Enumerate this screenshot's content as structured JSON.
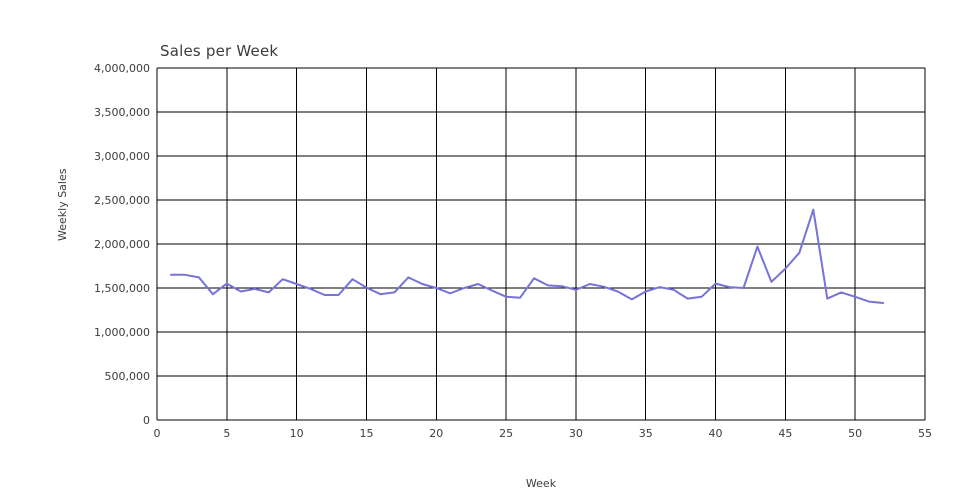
{
  "page": {
    "background_color": "#ffffff",
    "text_color": "#3c3c3c"
  },
  "chart_data": {
    "type": "line",
    "title": "Sales per Week",
    "xlabel": "Week",
    "ylabel": "Weekly Sales",
    "xlim": [
      0,
      55
    ],
    "ylim": [
      0,
      4000000
    ],
    "grid": true,
    "grid_color": "#000000",
    "legend_position": "none",
    "x_ticks": [
      0,
      5,
      10,
      15,
      20,
      25,
      30,
      35,
      40,
      45,
      50,
      55
    ],
    "x_tick_labels": [
      "0",
      "5",
      "10",
      "15",
      "20",
      "25",
      "30",
      "35",
      "40",
      "45",
      "50",
      "55"
    ],
    "y_ticks": [
      0,
      500000,
      1000000,
      1500000,
      2000000,
      2500000,
      3000000,
      3500000,
      4000000
    ],
    "y_tick_labels": [
      "0",
      "500,000",
      "1,000,000",
      "1,500,000",
      "2,000,000",
      "2,500,000",
      "3,000,000",
      "3,500,000",
      "4,000,000"
    ],
    "x": [
      1,
      2,
      3,
      4,
      5,
      6,
      7,
      8,
      9,
      10,
      11,
      12,
      13,
      14,
      15,
      16,
      17,
      18,
      19,
      20,
      21,
      22,
      23,
      24,
      25,
      26,
      27,
      28,
      29,
      30,
      31,
      32,
      33,
      34,
      35,
      36,
      37,
      38,
      39,
      40,
      41,
      42,
      43,
      44,
      45,
      46,
      47,
      48,
      49,
      50,
      51,
      52
    ],
    "series": [
      {
        "name": "Weekly Sales",
        "color": "#7673d9",
        "values": [
          1650000,
          1650000,
          1620000,
          1430000,
          1550000,
          1460000,
          1490000,
          1450000,
          1600000,
          1545000,
          1490000,
          1420000,
          1420000,
          1600000,
          1505000,
          1430000,
          1450000,
          1620000,
          1545000,
          1500000,
          1440000,
          1500000,
          1545000,
          1470000,
          1400000,
          1390000,
          1610000,
          1530000,
          1520000,
          1480000,
          1545000,
          1515000,
          1460000,
          1370000,
          1460000,
          1510000,
          1480000,
          1380000,
          1400000,
          1550000,
          1510000,
          1500000,
          1970000,
          1570000,
          1720000,
          1900000,
          2390000,
          1380000,
          1450000,
          1400000,
          1345000,
          1330000
        ]
      }
    ]
  }
}
